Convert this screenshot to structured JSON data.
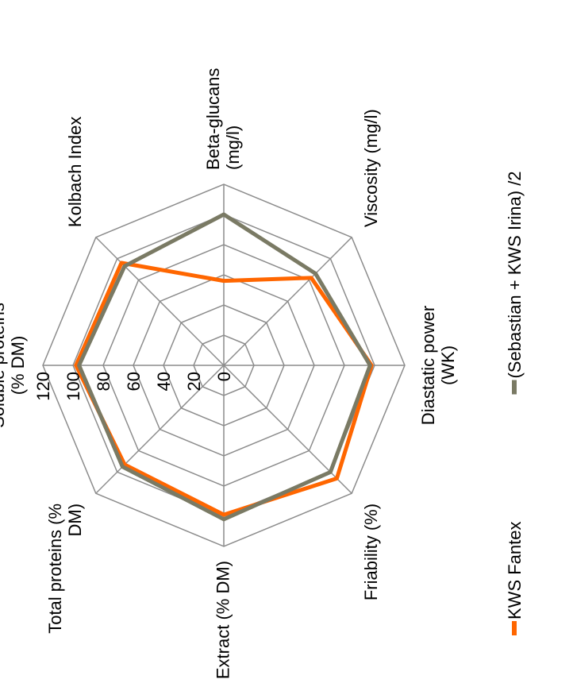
{
  "chart_data": {
    "type": "radar",
    "title": "",
    "axes": [
      {
        "label_lines": [
          "Soluble proteins",
          "(% DM)"
        ]
      },
      {
        "label_lines": [
          "Kolbach Index"
        ]
      },
      {
        "label_lines": [
          "Beta-glucans",
          "(mg/l)"
        ]
      },
      {
        "label_lines": [
          "Viscosity (mg/l)"
        ]
      },
      {
        "label_lines": [
          "Diastatic power",
          "(WK)"
        ]
      },
      {
        "label_lines": [
          "Friability (%)"
        ]
      },
      {
        "label_lines": [
          "Extract (% DM)"
        ]
      },
      {
        "label_lines": [
          "Total proteins (%",
          "DM)"
        ]
      }
    ],
    "ticks": [
      "0",
      "20",
      "40",
      "60",
      "80",
      "100",
      "120"
    ],
    "range": [
      0,
      120
    ],
    "grid": true,
    "legend_position": "right",
    "series": [
      {
        "name": "KWS Fantex",
        "color": "#FF6600",
        "values": [
          98,
          96,
          56,
          82,
          98,
          106,
          99,
          93
        ]
      },
      {
        "name": "(Sebastian + KWS Irina) /2",
        "color": "#7A7A64",
        "values": [
          96,
          93,
          100,
          86,
          97,
          100,
          102,
          95
        ]
      }
    ]
  }
}
